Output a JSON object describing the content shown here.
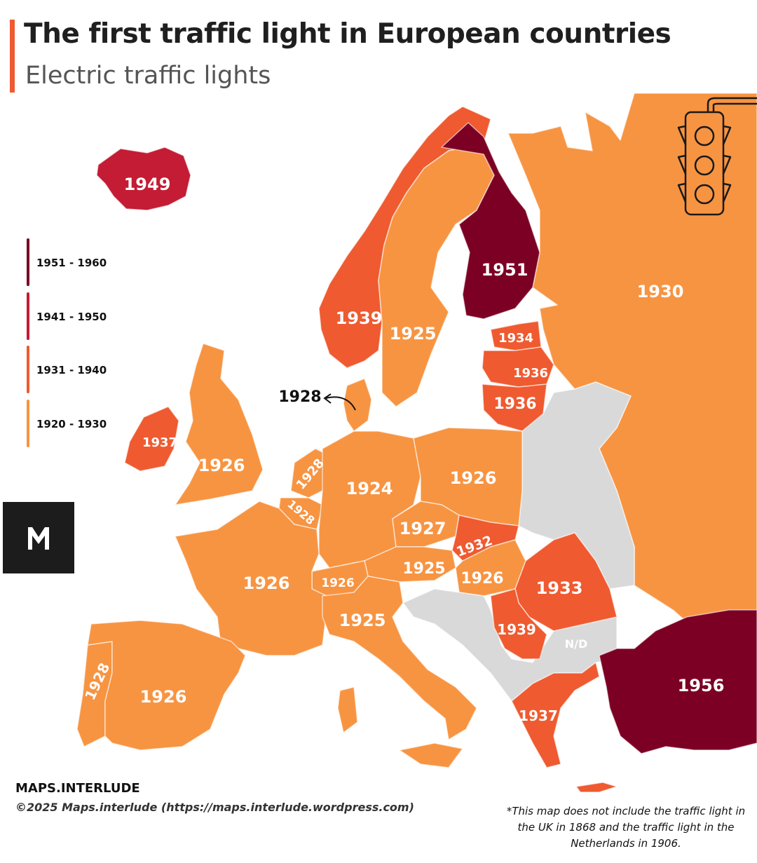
{
  "header": {
    "title": "The first traffic light in European countries",
    "subtitle": "Electric traffic lights"
  },
  "colors": {
    "1920-1930": "#f79442",
    "1931-1940": "#ef5a30",
    "1941-1950": "#c31c34",
    "1951-1960": "#7c0024",
    "no_data": "#d9d9d9",
    "accent": "#ef5a30"
  },
  "legend": {
    "items": [
      {
        "label": "1951 - 1960",
        "color": "#7c0024"
      },
      {
        "label": "1941 - 1950",
        "color": "#c31c34"
      },
      {
        "label": "1931 - 1940",
        "color": "#ef5a30"
      },
      {
        "label": "1920 - 1930",
        "color": "#f79442"
      }
    ]
  },
  "map": {
    "labels": {
      "iceland": "1949",
      "finland": "1951",
      "russia": "1930",
      "norway": "1939",
      "sweden": "1925",
      "estonia": "1934",
      "latvia": "1936",
      "lithuania": "1936",
      "denmark": "1928",
      "ireland": "1937",
      "uk": "1926",
      "netherlands": "1928",
      "belgium": "1928",
      "germany": "1924",
      "poland": "1926",
      "czechia": "1927",
      "slovakia": "1932",
      "austria": "1925",
      "hungary": "1926",
      "switzerland": "1926",
      "france": "1926",
      "romania": "1933",
      "italy": "1925",
      "serbia": "1939",
      "bulgaria": "N/D",
      "portugal": "1928",
      "spain": "1926",
      "greece": "1937",
      "turkey": "1956"
    }
  },
  "footer": {
    "brand": "MAPS.INTERLUDE",
    "copyright": "©2025 Maps.interlude (https://maps.interlude.wordpress.com)",
    "footnote": "*This map does not include the traffic light in the UK in 1868 and the traffic light in the Netherlands in 1906."
  }
}
